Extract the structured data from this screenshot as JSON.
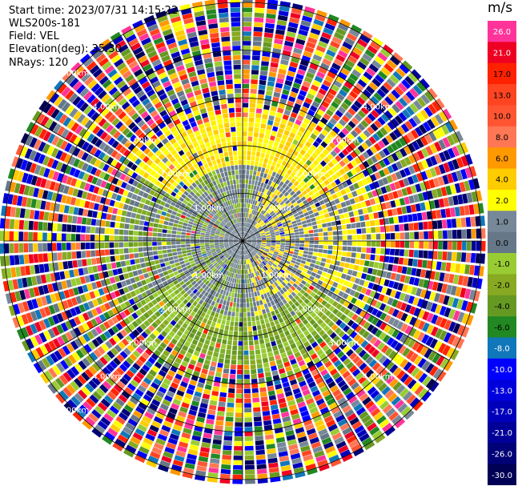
{
  "header": {
    "start_time": "Start time: 2023/07/31 14:15:22",
    "device": "WLS200s-181",
    "field": "Field: VEL",
    "elevation": "Elevation(deg): 35.30",
    "nrays": "NRays: 120"
  },
  "colorbar": {
    "unit": "m/s",
    "bins": [
      {
        "label": "26.0",
        "color": "#ff3399"
      },
      {
        "label": "21.0",
        "color": "#ee0022"
      },
      {
        "label": "17.0",
        "color": "#ff2200"
      },
      {
        "label": "13.0",
        "color": "#ff4422"
      },
      {
        "label": "10.0",
        "color": "#ff5533"
      },
      {
        "label": "8.0",
        "color": "#ff7755"
      },
      {
        "label": "6.0",
        "color": "#ff9900"
      },
      {
        "label": "4.0",
        "color": "#ffcc00"
      },
      {
        "label": "2.0",
        "color": "#ffff00"
      },
      {
        "label": "1.0",
        "color": "#778899"
      },
      {
        "label": "0.0",
        "color": "#667788"
      },
      {
        "label": "-1.0",
        "color": "#99cc33"
      },
      {
        "label": "-2.0",
        "color": "#88aa22"
      },
      {
        "label": "-4.0",
        "color": "#669922"
      },
      {
        "label": "-6.0",
        "color": "#228822"
      },
      {
        "label": "-8.0",
        "color": "#1177bb"
      },
      {
        "label": "-10.0",
        "color": "#0000ff"
      },
      {
        "label": "-13.0",
        "color": "#0000dd"
      },
      {
        "label": "-17.0",
        "color": "#0000bb"
      },
      {
        "label": "-21.0",
        "color": "#000099"
      },
      {
        "label": "-26.0",
        "color": "#000077"
      },
      {
        "label": "-30.0",
        "color": "#000055"
      }
    ]
  },
  "chart_data": {
    "type": "heatmap",
    "variant": "polar-ppi",
    "field": "VEL",
    "nrays": 120,
    "elevation_deg": 35.3,
    "range_rings_km": [
      1,
      2,
      3,
      4,
      5
    ],
    "max_range_km": 5.0,
    "ring_labels": [
      "1.00km",
      "2.00km",
      "3.00km",
      "4.00km",
      "5.00km"
    ],
    "spoke_step_deg": 30,
    "regions": [
      {
        "range_km": [
          0,
          1.6
        ],
        "pattern": "gray near center, yellow north-east, green south-west"
      },
      {
        "range_km": [
          1.6,
          2.6
        ],
        "pattern": "yellow north, green south, gray east/west"
      },
      {
        "range_km": [
          2.6,
          5.0
        ],
        "pattern": "noisy, all colours"
      }
    ]
  }
}
